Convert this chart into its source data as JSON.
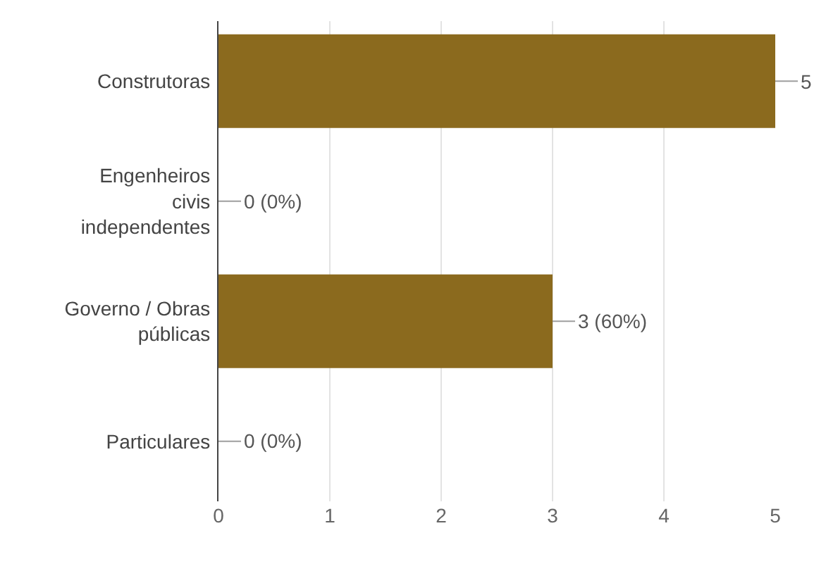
{
  "chart_data": {
    "type": "bar",
    "orientation": "horizontal",
    "categories": [
      "Construtoras",
      "Engenheiros civis independentes",
      "Governo / Obras públicas",
      "Particulares"
    ],
    "values": [
      5,
      0,
      3,
      0
    ],
    "value_labels": [
      "5",
      "0 (0%)",
      "3 (60%)",
      "0 (0%)"
    ],
    "color": "#8b6a1e",
    "xlim": [
      0,
      5
    ],
    "xticks": [
      0,
      1,
      2,
      3,
      4,
      5
    ],
    "grid": "x",
    "legend": false
  }
}
